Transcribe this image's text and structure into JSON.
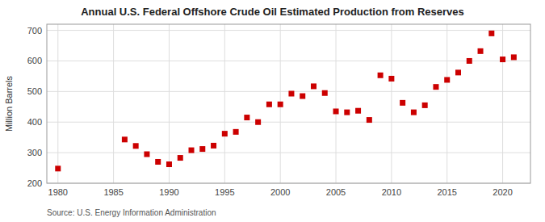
{
  "chart_data": {
    "type": "scatter",
    "title": "Annual U.S. Federal Offshore Crude Oil Estimated Production from Reserves",
    "ylabel": "Million Barrels",
    "source": "Source: U.S. Energy Information Administration",
    "color": "#cc0000",
    "marker": "square",
    "grid": true,
    "xlim": [
      1979,
      2022.5
    ],
    "ylim": [
      200,
      720
    ],
    "xticks": [
      1980,
      1985,
      1990,
      1995,
      2000,
      2005,
      2010,
      2015,
      2020
    ],
    "yticks": [
      200,
      300,
      400,
      500,
      600,
      700
    ],
    "x": [
      1980,
      1986,
      1987,
      1988,
      1989,
      1990,
      1991,
      1992,
      1993,
      1994,
      1995,
      1996,
      1997,
      1998,
      1999,
      2000,
      2001,
      2002,
      2003,
      2004,
      2005,
      2006,
      2007,
      2008,
      2009,
      2010,
      2011,
      2012,
      2013,
      2014,
      2015,
      2016,
      2017,
      2018,
      2019,
      2020,
      2021
    ],
    "values": [
      248,
      343,
      322,
      295,
      270,
      262,
      283,
      308,
      312,
      323,
      362,
      368,
      415,
      400,
      458,
      458,
      493,
      485,
      517,
      495,
      435,
      432,
      437,
      407,
      553,
      542,
      463,
      432,
      455,
      515,
      538,
      562,
      600,
      632,
      690,
      605,
      612
    ]
  }
}
